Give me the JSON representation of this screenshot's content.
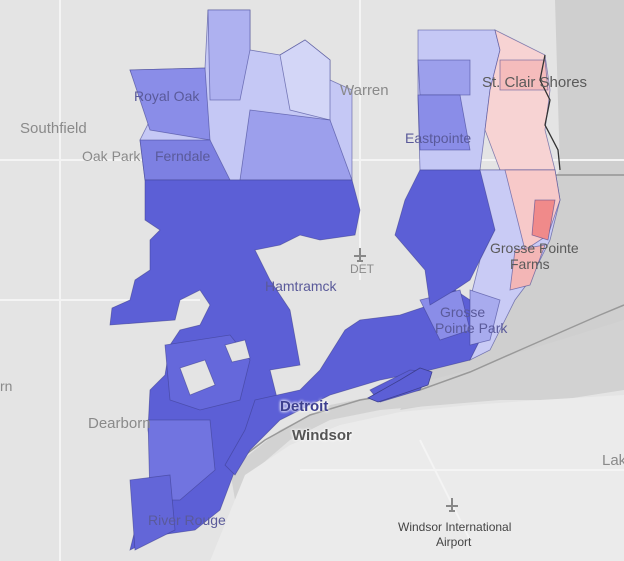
{
  "map": {
    "labels": {
      "southfield": "Southfield",
      "royal_oak": "Royal Oak",
      "oak_park": "Oak Park",
      "ferndale": "Ferndale",
      "warren": "Warren",
      "st_clair_shores": "St. Clair Shores",
      "eastpointe": "Eastpointe",
      "grosse_pointe_farms_1": "Grosse Pointe",
      "grosse_pointe_farms_2": "Farms",
      "grosse_pointe_park_1": "Grosse",
      "grosse_pointe_park_2": "Pointe Park",
      "hamtramck": "Hamtramck",
      "det": "DET",
      "detroit": "Detroit",
      "windsor": "Windsor",
      "dearborn": "Dearborn",
      "river_rouge": "River Rouge",
      "windsor_airport_1": "Windsor International",
      "windsor_airport_2": "Airport",
      "lake": "Lak",
      "edge_n": "rn"
    },
    "colors": {
      "dark_blue": "#5c5fd6",
      "mid_blue": "#8a8de8",
      "light_blue": "#c5c8f5",
      "pale_blue": "#e2e4fa",
      "light_red": "#f7c9c9",
      "red": "#f08a8a",
      "water": "#cfcfcf",
      "land": "#e4e4e4"
    }
  }
}
